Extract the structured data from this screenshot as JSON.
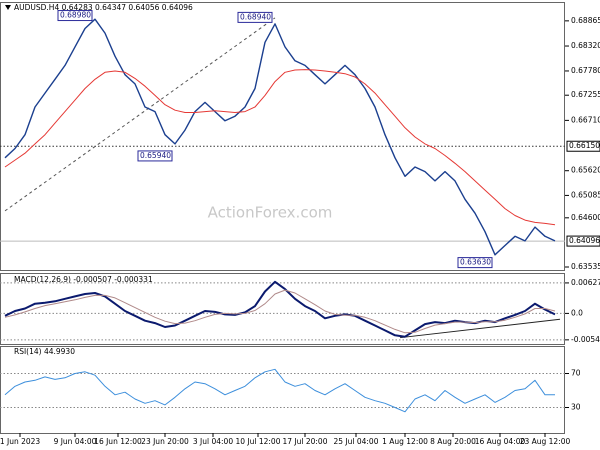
{
  "chart_data": [
    {
      "type": "line",
      "title": "AUDUSD.H4  0.64283 0.64347 0.64056 0.64096",
      "watermark": "ActionForex.com",
      "xlim": [
        -0.5,
        56
      ],
      "ylim": [
        0.6347,
        0.6923
      ],
      "grid": false,
      "yticks": [
        0.68865,
        {
          "value": 0.6832,
          "label": "0.68320"
        },
        {
          "value": 0.6778,
          "label": "0.67780"
        },
        0.67255,
        {
          "value": 0.6671,
          "label": "0.66710"
        },
        {
          "value": 0.6562,
          "label": "0.65620"
        },
        0.65085,
        {
          "value": 0.646,
          "label": "0.64600"
        },
        0.63535
      ],
      "series": [
        {
          "name": "AUDUSD",
          "color": "#1b3f8f",
          "width": 1.4,
          "values": [
            0.659,
            0.661,
            0.664,
            0.67,
            0.673,
            0.676,
            0.679,
            0.683,
            0.687,
            0.689,
            0.686,
            0.681,
            0.677,
            0.675,
            0.67,
            0.669,
            0.664,
            0.662,
            0.665,
            0.669,
            0.671,
            0.669,
            0.667,
            0.668,
            0.67,
            0.674,
            0.684,
            0.688,
            0.683,
            0.68,
            0.679,
            0.677,
            0.675,
            0.677,
            0.679,
            0.677,
            0.674,
            0.67,
            0.664,
            0.659,
            0.655,
            0.657,
            0.656,
            0.654,
            0.656,
            0.654,
            0.65,
            0.647,
            0.643,
            0.638,
            0.64,
            0.642,
            0.641,
            0.644,
            0.642,
            0.641
          ]
        },
        {
          "name": "MA",
          "color": "#e53935",
          "width": 1,
          "values": [
            0.657,
            0.6585,
            0.66,
            0.662,
            0.664,
            0.6665,
            0.669,
            0.6715,
            0.674,
            0.676,
            0.6775,
            0.6778,
            0.6775,
            0.6762,
            0.6745,
            0.6725,
            0.6705,
            0.6693,
            0.6688,
            0.6688,
            0.669,
            0.6692,
            0.669,
            0.6688,
            0.669,
            0.67,
            0.6725,
            0.6755,
            0.6775,
            0.678,
            0.6781,
            0.678,
            0.6778,
            0.6775,
            0.6772,
            0.6765,
            0.675,
            0.673,
            0.6705,
            0.668,
            0.6655,
            0.6635,
            0.662,
            0.661,
            0.6595,
            0.6578,
            0.656,
            0.654,
            0.652,
            0.65,
            0.648,
            0.6465,
            0.6455,
            0.645,
            0.6448,
            0.6445
          ]
        }
      ],
      "hlines": [
        {
          "value": 0.6615,
          "label": "0.66150",
          "style": "dotted"
        },
        {
          "value": 0.64096,
          "style": "solid"
        }
      ],
      "annotations": [
        {
          "x": 9,
          "value": 0.6898,
          "label": "0.68980"
        },
        {
          "x": 27,
          "value": 0.6894,
          "label": "0.68940"
        },
        {
          "x": 17,
          "value": 0.6594,
          "label": "0.65940"
        },
        {
          "x": 49,
          "value": 0.6363,
          "label": "0.63630"
        }
      ],
      "trendlines": [
        {
          "x": [
            0,
            27
          ],
          "values": [
            0.6475,
            0.6893
          ],
          "style": "dashed"
        }
      ]
    },
    {
      "type": "line",
      "title": "MACD(12,26,9) -0.000507 -0.000331",
      "xlim": [
        -0.5,
        56
      ],
      "ylim": [
        -0.0063,
        0.0077
      ],
      "grid": true,
      "yticks": [
        0.006275,
        {
          "value": 0,
          "label": "0.0"
        },
        -0.005446
      ],
      "series": [
        {
          "name": "MACD",
          "color": "#0b1a6e",
          "width": 2,
          "values": [
            -0.0005,
            0.0005,
            0.001,
            0.002,
            0.0022,
            0.0025,
            0.003,
            0.0035,
            0.004,
            0.0042,
            0.0035,
            0.002,
            0.0005,
            -0.0005,
            -0.0015,
            -0.002,
            -0.0028,
            -0.0025,
            -0.0015,
            -0.0005,
            0.0005,
            0.0003,
            -0.0002,
            -0.0003,
            0.0002,
            0.0015,
            0.0045,
            0.0065,
            0.005,
            0.003,
            0.0015,
            0.0005,
            -0.001,
            -0.0005,
            -0.0002,
            -0.0005,
            -0.0015,
            -0.0025,
            -0.0035,
            -0.0045,
            -0.0048,
            -0.0035,
            -0.0022,
            -0.0018,
            -0.002,
            -0.0015,
            -0.0018,
            -0.002,
            -0.0015,
            -0.0018,
            -0.001,
            -0.0003,
            0.0005,
            0.002,
            0.0008,
            -0.0002
          ]
        },
        {
          "name": "Signal",
          "color": "#b08a8a",
          "width": 1,
          "values": [
            -0.0008,
            -0.0003,
            0.0003,
            0.001,
            0.0016,
            0.002,
            0.0024,
            0.0028,
            0.0033,
            0.0037,
            0.0037,
            0.0032,
            0.0022,
            0.0012,
            0.0002,
            -0.0008,
            -0.0016,
            -0.0021,
            -0.002,
            -0.0015,
            -0.0008,
            -0.0002,
            0,
            -0.0001,
            0,
            0.0006,
            0.002,
            0.004,
            0.0048,
            0.0042,
            0.003,
            0.0018,
            0.0005,
            -0.0002,
            -0.0004,
            -0.0004,
            -0.0008,
            -0.0015,
            -0.0024,
            -0.0033,
            -0.004,
            -0.0039,
            -0.0031,
            -0.0024,
            -0.0021,
            -0.0018,
            -0.0018,
            -0.0019,
            -0.0017,
            -0.0017,
            -0.0014,
            -0.0008,
            -0.0001,
            0.001,
            0.001,
            0.0005
          ]
        }
      ],
      "trendlines": [
        {
          "x": [
            39.5,
            55.5
          ],
          "values": [
            -0.005,
            -0.0012
          ],
          "style": "solid"
        }
      ]
    },
    {
      "type": "line",
      "title": "RSI(14) 44.9930",
      "xlim": [
        -0.5,
        56
      ],
      "ylim": [
        0,
        100
      ],
      "grid": true,
      "yticks": [
        70,
        30
      ],
      "series": [
        {
          "name": "RSI",
          "color": "#3d8fdc",
          "width": 1,
          "values": [
            45,
            55,
            60,
            62,
            66,
            63,
            65,
            70,
            72,
            68,
            55,
            45,
            48,
            40,
            35,
            38,
            33,
            42,
            52,
            60,
            58,
            52,
            45,
            50,
            55,
            65,
            72,
            75,
            60,
            55,
            58,
            50,
            45,
            52,
            58,
            50,
            42,
            38,
            35,
            30,
            25,
            40,
            45,
            38,
            50,
            42,
            35,
            40,
            45,
            36,
            42,
            50,
            52,
            62,
            45,
            45
          ]
        }
      ],
      "xticks": [
        {
          "value": 1.5,
          "label": "1 Jun 2023"
        },
        {
          "value": 7,
          "label": "9 Jun 04:00"
        },
        {
          "value": 11.3,
          "label": "16 Jun 12:00"
        },
        {
          "value": 16,
          "label": "23 Jun 20:00"
        },
        {
          "value": 20.8,
          "label": "3 Jul 04:00"
        },
        {
          "value": 25.3,
          "label": "10 Jul 12:00"
        },
        {
          "value": 30,
          "label": "17 Jul 20:00"
        },
        {
          "value": 35.1,
          "label": "25 Jul 04:00"
        },
        {
          "value": 40,
          "label": "1 Aug 12:00"
        },
        {
          "value": 44.8,
          "label": "8 Aug 20:00"
        },
        {
          "value": 49.5,
          "label": "16 Aug 04:00"
        },
        {
          "value": 54,
          "label": "23 Aug 12:00"
        }
      ]
    }
  ]
}
